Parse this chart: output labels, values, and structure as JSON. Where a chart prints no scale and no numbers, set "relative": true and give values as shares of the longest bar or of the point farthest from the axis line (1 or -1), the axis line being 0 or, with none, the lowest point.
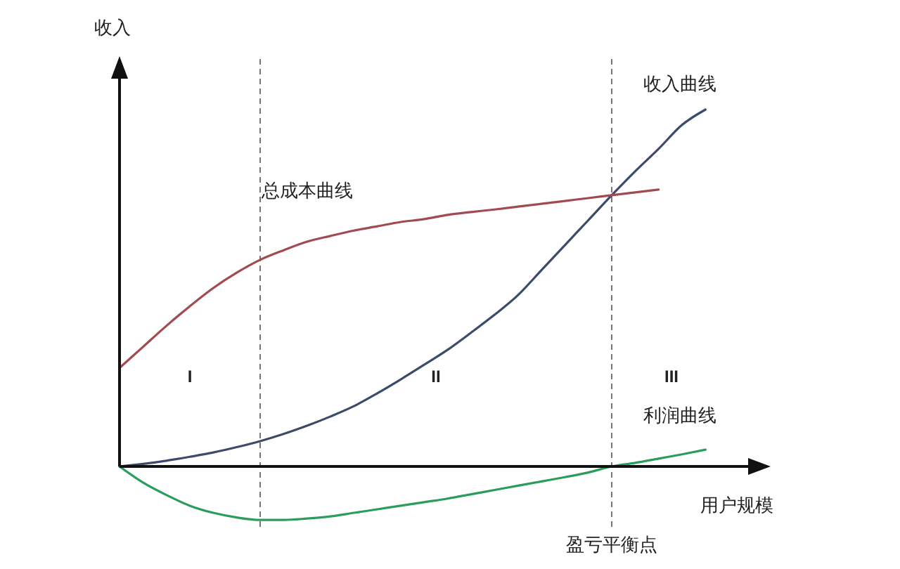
{
  "chart_data": {
    "type": "line",
    "relative": true,
    "xlabel": "用户规模",
    "ylabel": "收入",
    "categories": [
      null,
      null,
      null,
      null,
      null,
      null,
      null,
      null,
      null,
      null,
      null,
      null,
      null,
      null,
      null,
      null,
      null,
      null,
      null,
      null,
      null,
      null,
      null,
      null,
      null,
      null
    ],
    "series": [
      {
        "name": "收入曲线",
        "color": "#3d4b6a",
        "values": [
          0,
          0.007,
          0.016,
          0.027,
          0.039,
          0.054,
          0.071,
          0.091,
          0.114,
          0.14,
          0.169,
          0.205,
          0.244,
          0.285,
          0.327,
          0.375,
          0.425,
          0.48,
          0.55,
          0.62,
          0.69,
          0.76,
          0.827,
          0.89,
          0.957,
          1
        ]
      },
      {
        "name": "总成本曲线",
        "color": "#a24a52",
        "values": [
          0.276,
          0.335,
          0.394,
          0.449,
          0.5,
          0.543,
          0.579,
          0.606,
          0.63,
          0.646,
          0.661,
          0.673,
          0.685,
          0.693,
          0.705,
          0.713,
          0.72,
          0.728,
          0.736,
          0.744,
          0.752,
          0.76,
          0.768,
          0.776,
          null,
          null
        ]
      },
      {
        "name": "利润曲线",
        "color": "#2a9d5c",
        "values": [
          0,
          -0.045,
          -0.08,
          -0.11,
          -0.13,
          -0.143,
          -0.15,
          -0.15,
          -0.146,
          -0.14,
          -0.13,
          -0.12,
          -0.11,
          -0.1,
          -0.09,
          -0.078,
          -0.066,
          -0.054,
          -0.042,
          -0.03,
          -0.017,
          0,
          0.01,
          0.022,
          0.034,
          0.047
        ]
      }
    ],
    "annotations": [
      "I",
      "II",
      "III",
      "盈亏平衡点"
    ],
    "marker": "none",
    "line_style": "solid"
  }
}
